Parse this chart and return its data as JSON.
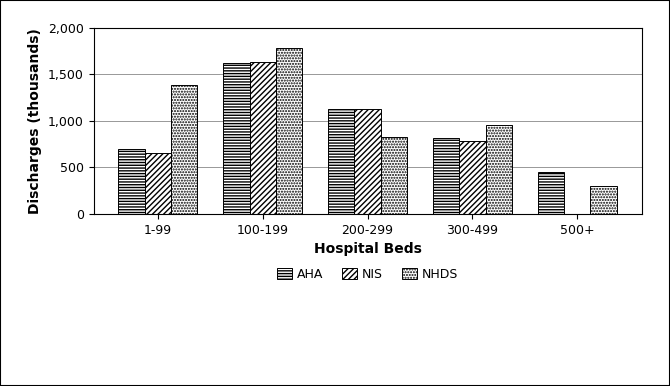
{
  "categories": [
    "1-99",
    "100-199",
    "200-299",
    "300-499",
    "500+"
  ],
  "series": {
    "AHA": [
      700,
      1620,
      1130,
      820,
      450
    ],
    "NIS": [
      650,
      1630,
      1130,
      780,
      0
    ],
    "NHDS": [
      1380,
      1780,
      830,
      950,
      300
    ]
  },
  "series_order": [
    "AHA",
    "NIS",
    "NHDS"
  ],
  "ylabel": "Discharges (thousands)",
  "xlabel": "Hospital Beds",
  "ylim": [
    0,
    2000
  ],
  "yticks": [
    0,
    500,
    1000,
    1500,
    2000
  ],
  "ytick_labels": [
    "0",
    "500",
    "1,000",
    "1,500",
    "2,000"
  ],
  "background_color": "#ffffff",
  "bar_edge_color": "#000000",
  "hatches": {
    "AHA": "---",
    "NIS": "////",
    "NHDS": "...."
  },
  "facecolors": {
    "AHA": "#ffffff",
    "NIS": "#ffffff",
    "NHDS": "#ffffff"
  }
}
